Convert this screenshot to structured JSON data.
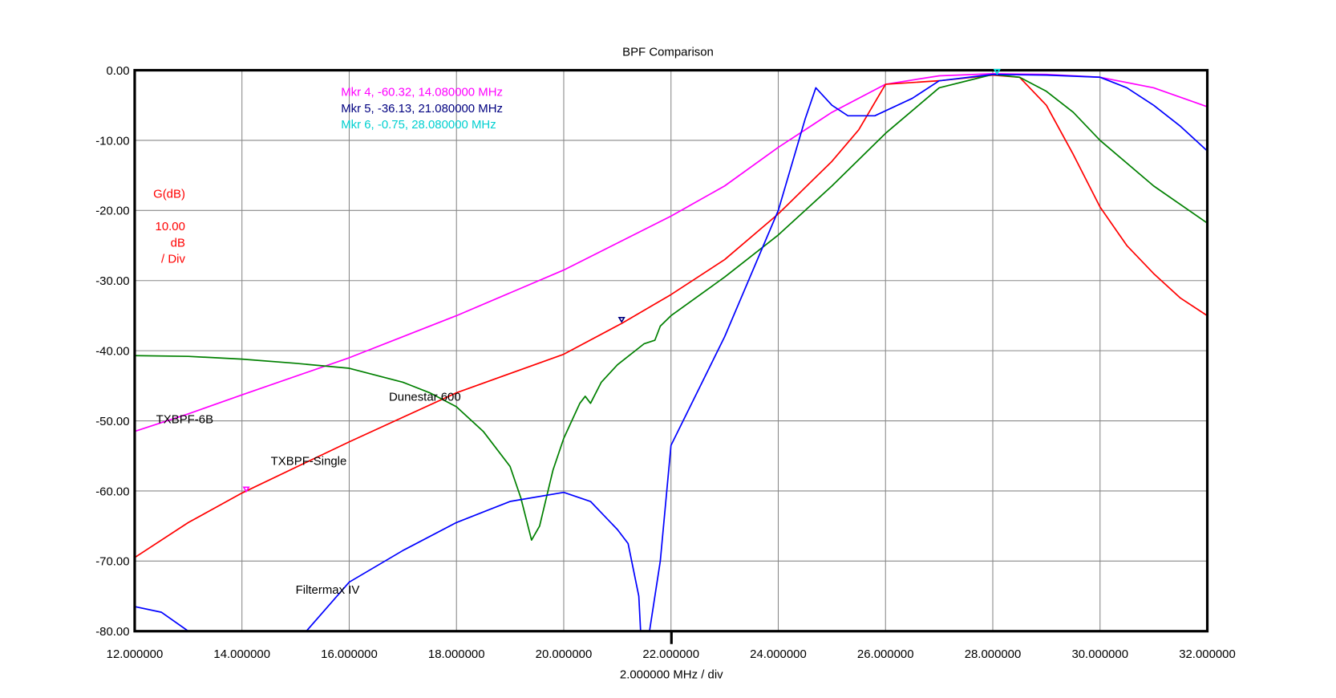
{
  "chart_data": {
    "type": "line",
    "title": "BPF Comparison",
    "xlabel": "2.000000 MHz / div",
    "ylabel": "G(dB)",
    "y_scale_label": [
      "10.00",
      "dB",
      "/ Div"
    ],
    "xlim": [
      12,
      32
    ],
    "ylim": [
      -80,
      0
    ],
    "grid": true,
    "x_ticks": [
      12,
      14,
      16,
      18,
      20,
      22,
      24,
      26,
      28,
      30,
      32
    ],
    "x_tick_labels": [
      "12.000000",
      "14.000000",
      "16.000000",
      "18.000000",
      "20.000000",
      "22.000000",
      "24.000000",
      "26.000000",
      "28.000000",
      "30.000000",
      "32.000000"
    ],
    "y_ticks": [
      0,
      -10,
      -20,
      -30,
      -40,
      -50,
      -60,
      -70,
      -80
    ],
    "y_tick_labels": [
      "0.00",
      "-10.00",
      "-20.00",
      "-30.00",
      "-40.00",
      "-50.00",
      "-60.00",
      "-70.00",
      "-80.00"
    ],
    "series": [
      {
        "name": "TXBPF-6B",
        "color": "#ff00ff",
        "x": [
          12,
          13,
          14,
          16,
          18,
          20,
          22,
          23,
          24,
          25,
          26,
          27,
          28,
          29,
          30,
          31,
          32
        ],
        "y": [
          -51.5,
          -49,
          -46.3,
          -41,
          -35,
          -28.5,
          -20.8,
          -16.5,
          -11,
          -6,
          -2,
          -0.8,
          -0.5,
          -0.6,
          -1,
          -2.5,
          -5.2
        ]
      },
      {
        "name": "TXBPF-Single",
        "color": "#ff0000",
        "x": [
          12,
          13,
          14,
          16,
          18,
          20,
          21.08,
          22,
          23,
          24,
          25,
          25.5,
          26,
          27,
          28,
          28.5,
          29,
          29.5,
          30,
          30.5,
          31,
          31.5,
          32
        ],
        "y": [
          -69.5,
          -64.5,
          -60.3,
          -53,
          -46,
          -40.5,
          -36.1,
          -32,
          -27,
          -20.5,
          -13,
          -8.5,
          -2,
          -1.5,
          -0.7,
          -1,
          -5,
          -12,
          -19.5,
          -25,
          -29,
          -32.5,
          -35
        ]
      },
      {
        "name": "Dunestar 600",
        "color": "#008000",
        "x": [
          12,
          13,
          14,
          15,
          16,
          17,
          17.5,
          18,
          18.5,
          19,
          19.2,
          19.4,
          19.55,
          19.8,
          20,
          20.3,
          20.4,
          20.5,
          20.7,
          21,
          21.5,
          21.7,
          21.8,
          22,
          23,
          24,
          25,
          26,
          27,
          28,
          28.5,
          29,
          29.5,
          30,
          31,
          32
        ],
        "y": [
          -40.7,
          -40.8,
          -41.2,
          -41.8,
          -42.5,
          -44.5,
          -46,
          -48,
          -51.5,
          -56.5,
          -61,
          -67,
          -65,
          -57,
          -52.5,
          -47.5,
          -46.5,
          -47.5,
          -44.5,
          -42,
          -39,
          -38.5,
          -36.5,
          -35,
          -29.5,
          -23.5,
          -16.5,
          -9,
          -2.5,
          -0.6,
          -1,
          -3,
          -6,
          -10,
          -16.5,
          -21.8
        ]
      },
      {
        "name": "Filtermax IV",
        "color": "#0000ff",
        "x": [
          12,
          12.5,
          13,
          13.5,
          15.2,
          16,
          17,
          18,
          19,
          20,
          20.5,
          21,
          21.2,
          21.4,
          21.5,
          21.6,
          21.8,
          22,
          23,
          24,
          24.5,
          24.7,
          25,
          25.3,
          25.8,
          26.5,
          27,
          28,
          29,
          30,
          30.5,
          31,
          31.5,
          32
        ],
        "y": [
          -76.5,
          -77.3,
          -80,
          -90,
          -80,
          -73,
          -68.5,
          -64.5,
          -61.5,
          -60.2,
          -61.5,
          -65.5,
          -67.5,
          -75,
          -90,
          -80,
          -70,
          -53.5,
          -38,
          -20,
          -7,
          -2.5,
          -5,
          -6.5,
          -6.5,
          -4,
          -1.5,
          -0.6,
          -0.7,
          -1,
          -2.5,
          -5,
          -8,
          -11.5
        ]
      }
    ],
    "markers": [
      {
        "label": "Mkr 4, -60.32, 14.080000 MHz",
        "x": 14.08,
        "y": -60.32,
        "color": "#ff00ff"
      },
      {
        "label": "Mkr 5, -36.13, 21.080000 MHz",
        "x": 21.08,
        "y": -36.13,
        "color": "#000080"
      },
      {
        "label": "Mkr 6, -0.75, 28.080000 MHz",
        "x": 28.08,
        "y": -0.75,
        "color": "#00e5e5"
      }
    ]
  }
}
